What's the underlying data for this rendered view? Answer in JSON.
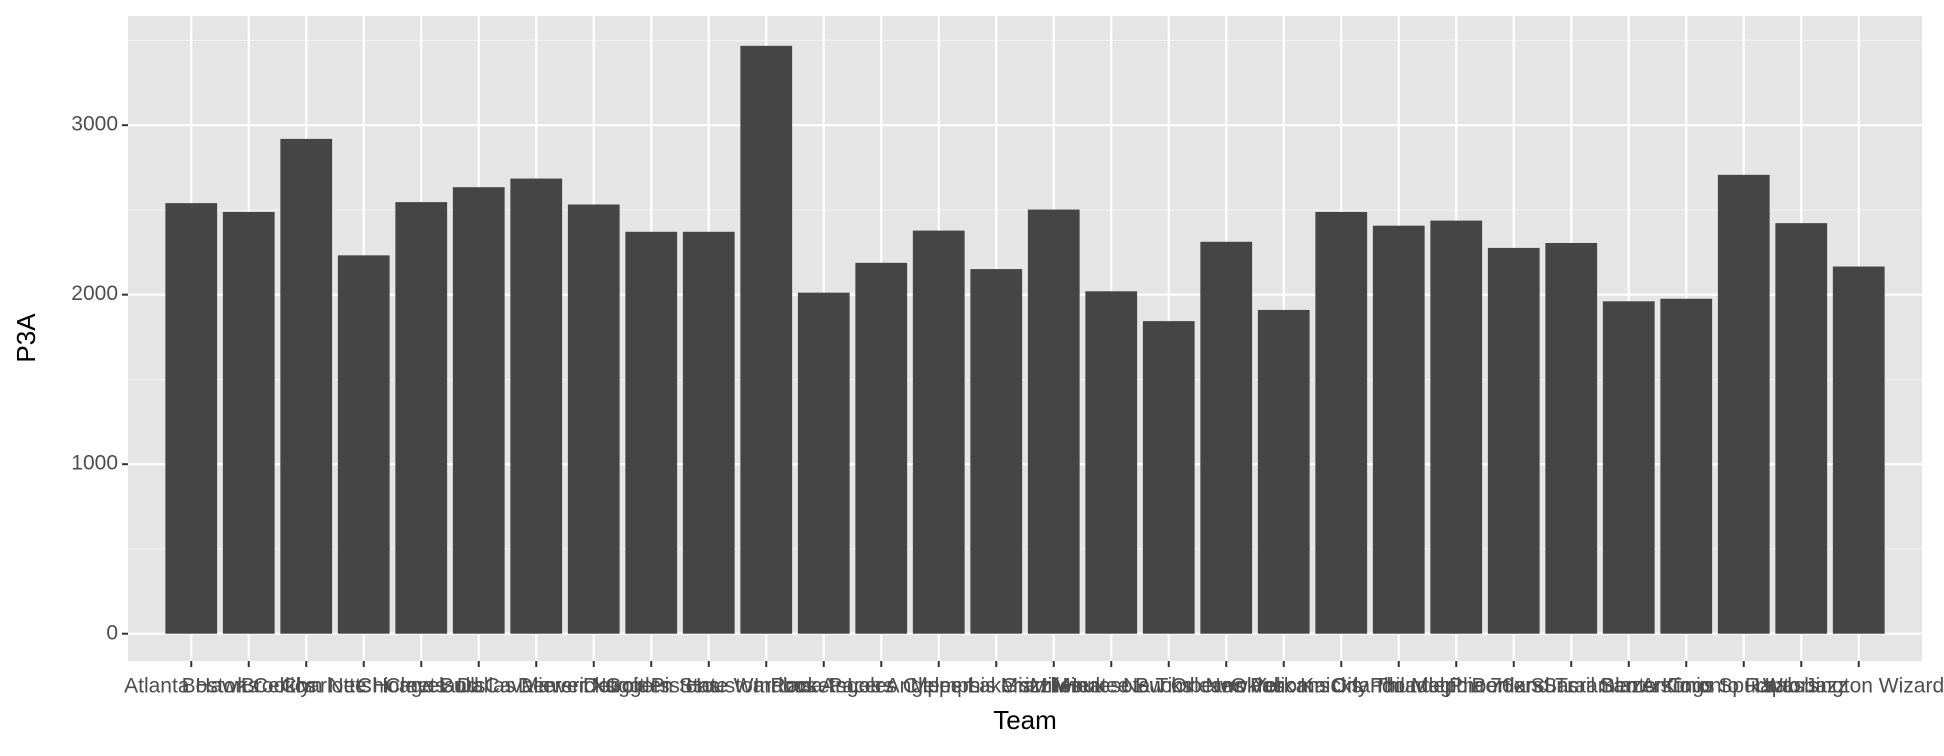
{
  "chart_data": {
    "type": "bar",
    "x_label": "Team",
    "y_label": "P3A",
    "categories": [
      "Atlanta Hawks",
      "Boston Celtics",
      "Brooklyn Nets",
      "Charlotte Hornets",
      "Chicago Bulls",
      "Cleveland Cavaliers",
      "Dallas Mavericks",
      "Denver Nuggets",
      "Detroit Pistons",
      "Golden State Warriors",
      "Houston Rockets",
      "Indiana Pacers",
      "Los Angeles Clippers",
      "Los Angeles Lakers",
      "Memphis Grizzlies",
      "Miami Heat",
      "Milwaukee Bucks",
      "Minnesota Timberwolves",
      "New Orleans Pelicans",
      "New York Knicks",
      "Oklahoma City Thunder",
      "Orlando Magic",
      "Philadelphia 76ers",
      "Phoenix Suns",
      "Portland Trail Blazers",
      "Sacramento Kings",
      "San Antonio Spurs",
      "Toronto Raptors",
      "Utah Jazz",
      "Washington Wizards"
    ],
    "values": [
      2540,
      2488,
      2919,
      2232,
      2546,
      2634,
      2685,
      2532,
      2371,
      2371,
      3468,
      2012,
      2188,
      2378,
      2151,
      2502,
      2020,
      1844,
      2312,
      1910,
      2488,
      2407,
      2437,
      2276,
      2305,
      1961,
      1976,
      2707,
      2422,
      2166
    ],
    "color": "#454545",
    "ylim": [
      -161,
      3644
    ],
    "yticks": [
      0,
      1000,
      2000,
      3000
    ],
    "grid": true
  }
}
